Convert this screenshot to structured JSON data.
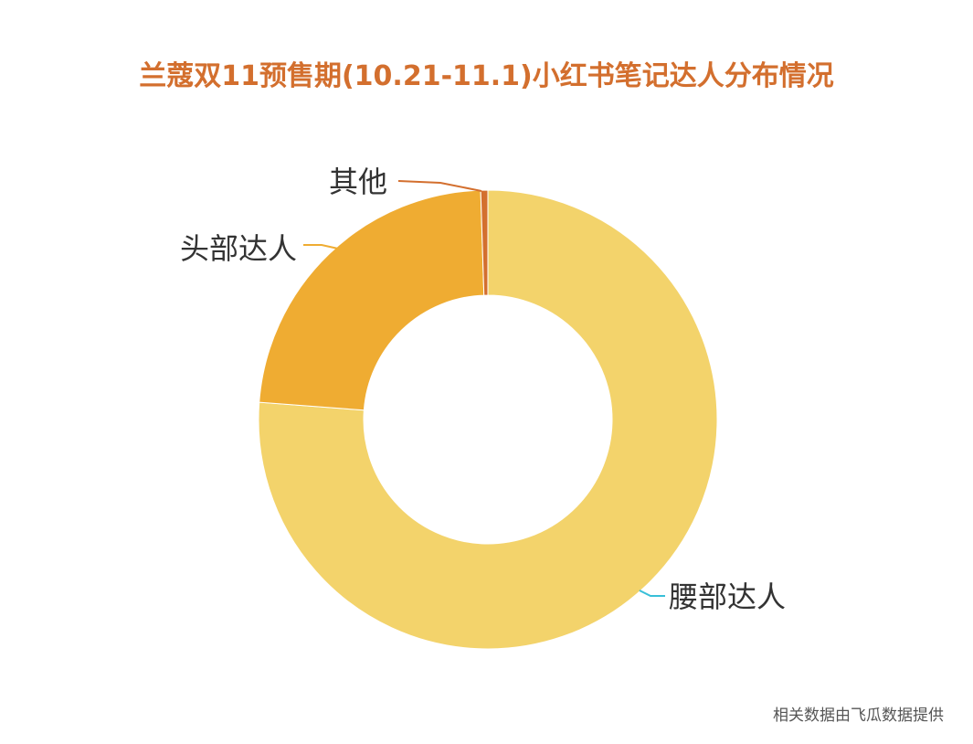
{
  "title": "兰蔻双11预售期(10.21-11.1)小红书笔记达人分布情况",
  "source_note": "相关数据由飞瓜数据提供",
  "chart_data": {
    "type": "pie",
    "donut": true,
    "title": "兰蔻双11预售期(10.21-11.1)小红书笔记达人分布情况",
    "slices": [
      {
        "label": "腰部达人",
        "value": 76.2,
        "color": "#f3d36b",
        "leader_color": "#38bfd8"
      },
      {
        "label": "头部达人",
        "value": 23.3,
        "color": "#efac32",
        "leader_color": "#efac32"
      },
      {
        "label": "其他",
        "value": 0.5,
        "color": "#d36f2e",
        "leader_color": "#d36f2e"
      }
    ],
    "legend": "none"
  }
}
